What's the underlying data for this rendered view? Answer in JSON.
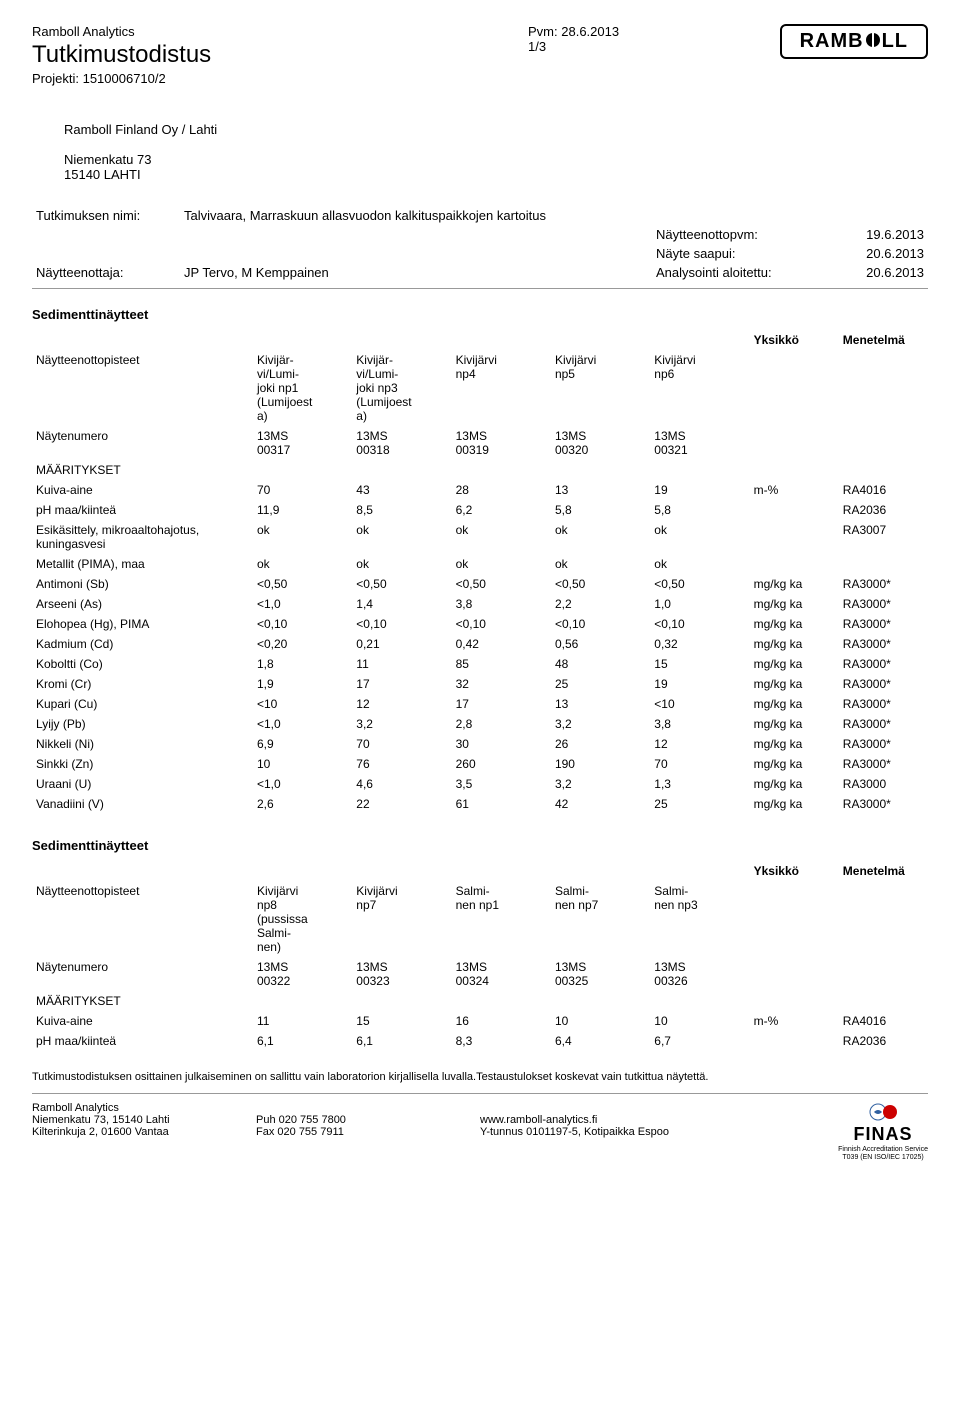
{
  "header": {
    "org": "Ramboll Analytics",
    "title": "Tutkimustodistus",
    "project_label": "Projekti:",
    "project_value": "1510006710/2",
    "pvm_label": "Pvm:",
    "pvm_value": "28.6.2013",
    "page": "1/3",
    "logo_text": "RAMB   LL"
  },
  "address": {
    "company": "Ramboll Finland Oy / Lahti",
    "street": "Niemenkatu 73",
    "city": "15140 LAHTI"
  },
  "meta": {
    "study_label": "Tutkimuksen nimi:",
    "study_value": "Talvivaara, Marraskuun allasvuodon kalkituspaikkojen kartoitus",
    "sampler_label": "Näytteenottaja:",
    "sampler_value": "JP Tervo, M Kemppainen",
    "samp_date_label": "Näytteenottopvm:",
    "samp_date_value": "19.6.2013",
    "recv_label": "Näyte saapui:",
    "recv_value": "20.6.2013",
    "anal_label": "Analysointi aloitettu:",
    "anal_value": "20.6.2013"
  },
  "labels": {
    "section1": "Sedimenttinäytteet",
    "section2": "Sedimenttinäytteet",
    "unit": "Yksikkö",
    "method": "Menetelmä",
    "samp_points": "Näytteenottopisteet",
    "samp_num": "Näytenumero",
    "maar": "MÄÄRITYKSET"
  },
  "table1": {
    "points": [
      "Kivijär-\nvi/Lumi-\njoki np1\n(Lumijoest\na)",
      "Kivijär-\nvi/Lumi-\njoki np3\n(Lumijoest\na)",
      "Kivijärvi\nnp4",
      "Kivijärvi\nnp5",
      "Kivijärvi\nnp6"
    ],
    "nums": [
      "13MS\n00317",
      "13MS\n00318",
      "13MS\n00319",
      "13MS\n00320",
      "13MS\n00321"
    ],
    "rows": [
      {
        "name": "Kuiva-aine",
        "v": [
          "70",
          "43",
          "28",
          "13",
          "19"
        ],
        "unit": "m-%",
        "meth": "RA4016"
      },
      {
        "name": "pH maa/kiinteä",
        "v": [
          "11,9",
          "8,5",
          "6,2",
          "5,8",
          "5,8"
        ],
        "unit": "",
        "meth": "RA2036"
      },
      {
        "name": "Esikäsittely, mikroaaltohajotus,\nkuningasvesi",
        "v": [
          "ok",
          "ok",
          "ok",
          "ok",
          "ok"
        ],
        "unit": "",
        "meth": "RA3007"
      },
      {
        "name": "Metallit (PIMA), maa",
        "v": [
          "ok",
          "ok",
          "ok",
          "ok",
          "ok"
        ],
        "unit": "",
        "meth": ""
      },
      {
        "name": "Antimoni (Sb)",
        "v": [
          "<0,50",
          "<0,50",
          "<0,50",
          "<0,50",
          "<0,50"
        ],
        "unit": "mg/kg ka",
        "meth": "RA3000*"
      },
      {
        "name": "Arseeni (As)",
        "v": [
          "<1,0",
          "1,4",
          "3,8",
          "2,2",
          "1,0"
        ],
        "unit": "mg/kg ka",
        "meth": "RA3000*"
      },
      {
        "name": "Elohopea (Hg), PIMA",
        "v": [
          "<0,10",
          "<0,10",
          "<0,10",
          "<0,10",
          "<0,10"
        ],
        "unit": "mg/kg ka",
        "meth": "RA3000*"
      },
      {
        "name": "Kadmium (Cd)",
        "v": [
          "<0,20",
          "0,21",
          "0,42",
          "0,56",
          "0,32"
        ],
        "unit": "mg/kg ka",
        "meth": "RA3000*"
      },
      {
        "name": "Koboltti (Co)",
        "v": [
          "1,8",
          "11",
          "85",
          "48",
          "15"
        ],
        "unit": "mg/kg ka",
        "meth": "RA3000*"
      },
      {
        "name": "Kromi (Cr)",
        "v": [
          "1,9",
          "17",
          "32",
          "25",
          "19"
        ],
        "unit": "mg/kg ka",
        "meth": "RA3000*"
      },
      {
        "name": "Kupari (Cu)",
        "v": [
          "<10",
          "12",
          "17",
          "13",
          "<10"
        ],
        "unit": "mg/kg ka",
        "meth": "RA3000*"
      },
      {
        "name": "Lyijy (Pb)",
        "v": [
          "<1,0",
          "3,2",
          "2,8",
          "3,2",
          "3,8"
        ],
        "unit": "mg/kg ka",
        "meth": "RA3000*"
      },
      {
        "name": "Nikkeli (Ni)",
        "v": [
          "6,9",
          "70",
          "30",
          "26",
          "12"
        ],
        "unit": "mg/kg ka",
        "meth": "RA3000*"
      },
      {
        "name": "Sinkki (Zn)",
        "v": [
          "10",
          "76",
          "260",
          "190",
          "70"
        ],
        "unit": "mg/kg ka",
        "meth": "RA3000*"
      },
      {
        "name": "Uraani (U)",
        "v": [
          "<1,0",
          "4,6",
          "3,5",
          "3,2",
          "1,3"
        ],
        "unit": "mg/kg ka",
        "meth": "RA3000"
      },
      {
        "name": "Vanadiini (V)",
        "v": [
          "2,6",
          "22",
          "61",
          "42",
          "25"
        ],
        "unit": "mg/kg ka",
        "meth": "RA3000*"
      }
    ]
  },
  "table2": {
    "points": [
      "Kivijärvi\nnp8\n(pussissa\nSalmi-\nnen)",
      "Kivijärvi\nnp7",
      "Salmi-\nnen np1",
      "Salmi-\nnen np7",
      "Salmi-\nnen np3"
    ],
    "nums": [
      "13MS\n00322",
      "13MS\n00323",
      "13MS\n00324",
      "13MS\n00325",
      "13MS\n00326"
    ],
    "rows": [
      {
        "name": "Kuiva-aine",
        "v": [
          "11",
          "15",
          "16",
          "10",
          "10"
        ],
        "unit": "m-%",
        "meth": "RA4016"
      },
      {
        "name": "pH maa/kiinteä",
        "v": [
          "6,1",
          "6,1",
          "8,3",
          "6,4",
          "6,7"
        ],
        "unit": "",
        "meth": "RA2036"
      }
    ]
  },
  "disclaimer": "Tutkimustodistuksen osittainen julkaiseminen on sallittu vain laboratorion kirjallisella luvalla.Testaustulokset koskevat vain tutkittua näytettä.",
  "footer": {
    "org": "Ramboll Analytics",
    "addr1": "Niemenkatu 73, 15140 Lahti",
    "addr2": "Kilterinkuja 2, 01600 Vantaa",
    "ph_label": "Puh",
    "ph": "020 755 7800",
    "fx_label": "Fax",
    "fx": "020 755 7911",
    "web": "www.ramboll-analytics.fi",
    "ytunnus": "Y-tunnus 0101197-5, Kotipaikka Espoo",
    "finas_big": "FINAS",
    "finas_sub1": "Finnish Accreditation Service",
    "finas_sub2": "T039 (EN ISO/IEC 17025)"
  }
}
